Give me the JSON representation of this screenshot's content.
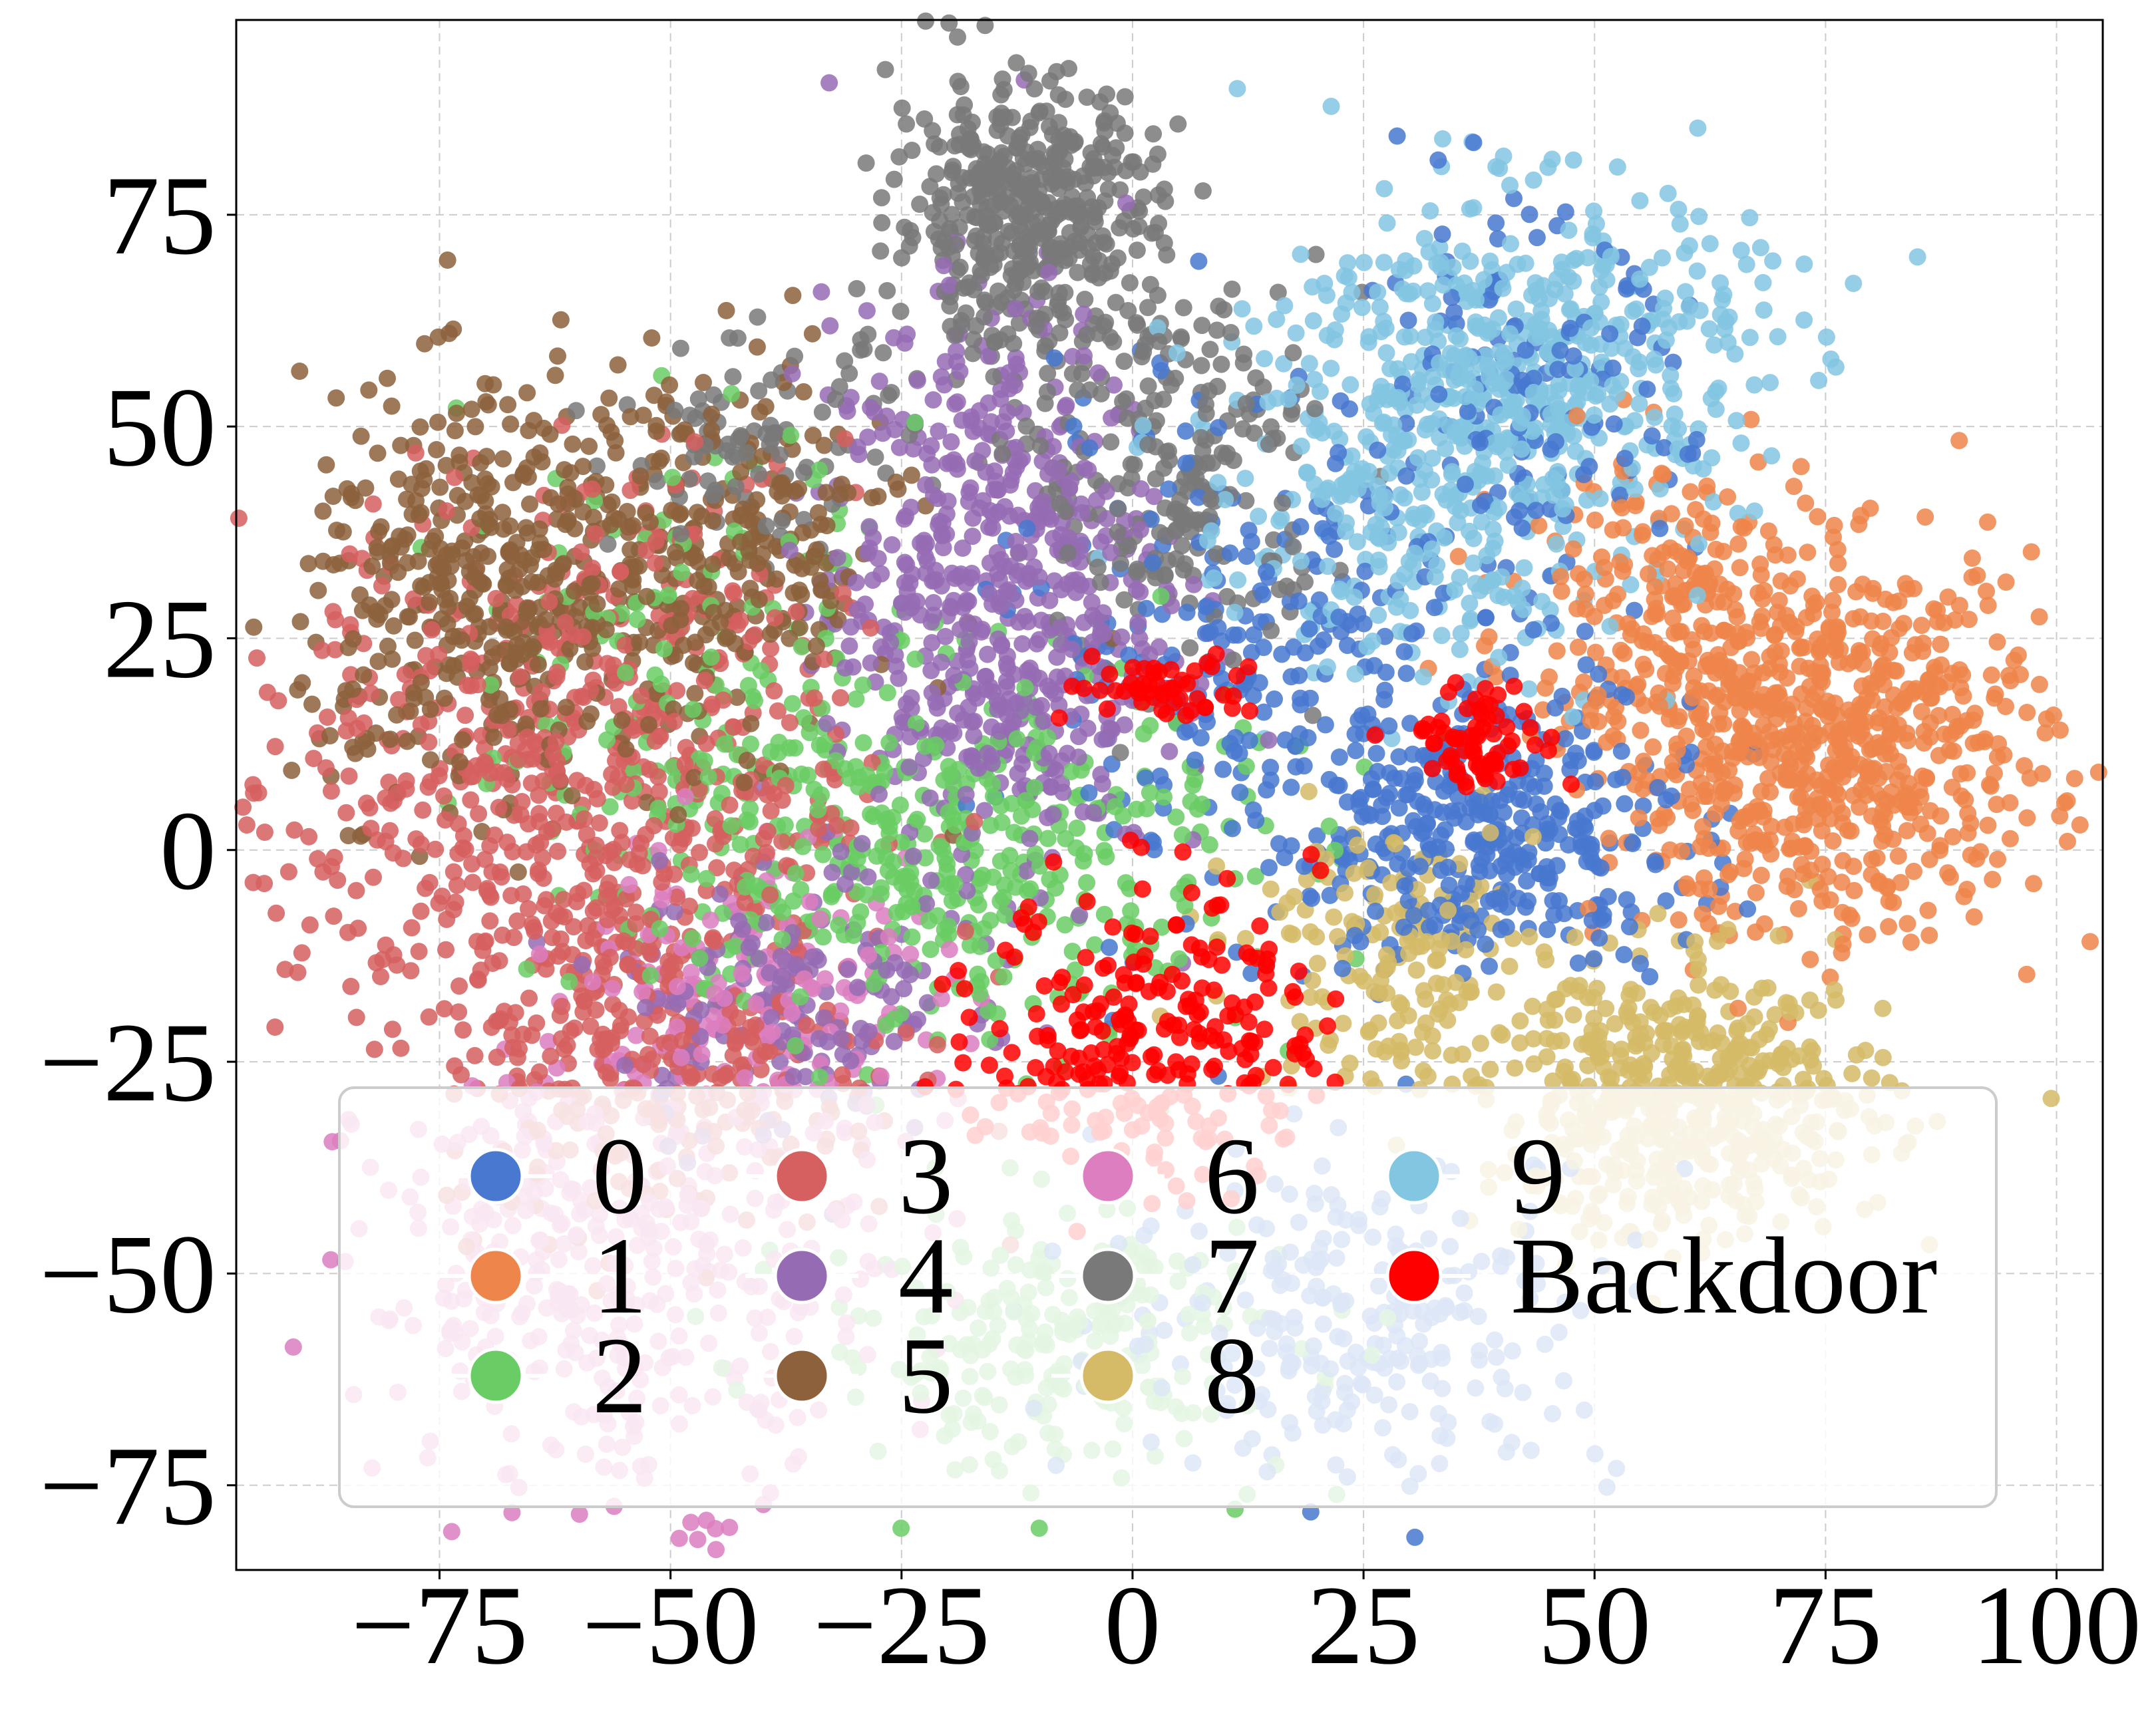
{
  "chart_data": {
    "type": "scatter",
    "title": "",
    "xlabel": "",
    "ylabel": "",
    "xlim": [
      -97,
      105
    ],
    "ylim": [
      -85,
      98
    ],
    "xticks": [
      "−75",
      "−50",
      "−25",
      "0",
      "25",
      "50",
      "75",
      "100"
    ],
    "yticks": [
      "−75",
      "−50",
      "−25",
      "0",
      "25",
      "50",
      "75"
    ],
    "grid": true,
    "legend_position": "lower center",
    "legend_columns": 4,
    "series": [
      {
        "name": "0",
        "color": "#4878d0",
        "clusters": [
          {
            "cx": 38,
            "cy": 2,
            "sx": 11,
            "sy": 8,
            "n": 380
          },
          {
            "cx": 12,
            "cy": 25,
            "sx": 12,
            "sy": 15,
            "n": 230
          },
          {
            "cx": 42,
            "cy": 50,
            "sx": 9,
            "sy": 12,
            "n": 150
          },
          {
            "cx": 25,
            "cy": -55,
            "sx": 14,
            "sy": 10,
            "n": 260
          }
        ]
      },
      {
        "name": "1",
        "color": "#ee854a",
        "clusters": [
          {
            "cx": 75,
            "cy": 12,
            "sx": 12,
            "sy": 11,
            "n": 720
          },
          {
            "cx": 57,
            "cy": 30,
            "sx": 8,
            "sy": 9,
            "n": 170
          }
        ]
      },
      {
        "name": "2",
        "color": "#6acc64",
        "clusters": [
          {
            "cx": -22,
            "cy": 0,
            "sx": 17,
            "sy": 11,
            "n": 440
          },
          {
            "cx": -8,
            "cy": -58,
            "sx": 13,
            "sy": 8,
            "n": 240
          },
          {
            "cx": -48,
            "cy": 20,
            "sx": 12,
            "sy": 14,
            "n": 130
          }
        ]
      },
      {
        "name": "3",
        "color": "#d65f5f",
        "clusters": [
          {
            "cx": -60,
            "cy": 8,
            "sx": 15,
            "sy": 17,
            "n": 700
          },
          {
            "cx": -50,
            "cy": -25,
            "sx": 13,
            "sy": 10,
            "n": 260
          }
        ]
      },
      {
        "name": "4",
        "color": "#956cb4",
        "clusters": [
          {
            "cx": -15,
            "cy": 30,
            "sx": 9,
            "sy": 17,
            "n": 620
          },
          {
            "cx": -38,
            "cy": -18,
            "sx": 9,
            "sy": 8,
            "n": 150
          }
        ]
      },
      {
        "name": "5",
        "color": "#8c613c",
        "clusters": [
          {
            "cx": -70,
            "cy": 30,
            "sx": 10,
            "sy": 12,
            "n": 420
          },
          {
            "cx": -45,
            "cy": 35,
            "sx": 10,
            "sy": 11,
            "n": 280
          }
        ]
      },
      {
        "name": "6",
        "color": "#dc7ec0",
        "clusters": [
          {
            "cx": -55,
            "cy": -50,
            "sx": 14,
            "sy": 13,
            "n": 400
          },
          {
            "cx": -40,
            "cy": -15,
            "sx": 10,
            "sy": 9,
            "n": 150
          }
        ]
      },
      {
        "name": "7",
        "color": "#797979",
        "clusters": [
          {
            "cx": -12,
            "cy": 75,
            "sx": 7,
            "sy": 8,
            "n": 460
          },
          {
            "cx": 5,
            "cy": 45,
            "sx": 8,
            "sy": 12,
            "n": 240
          },
          {
            "cx": -40,
            "cy": 48,
            "sx": 8,
            "sy": 6,
            "n": 90
          }
        ]
      },
      {
        "name": "8",
        "color": "#d5bb67",
        "clusters": [
          {
            "cx": 60,
            "cy": -30,
            "sx": 11,
            "sy": 8,
            "n": 520
          },
          {
            "cx": 28,
            "cy": -12,
            "sx": 8,
            "sy": 8,
            "n": 160
          }
        ]
      },
      {
        "name": "9",
        "color": "#82c6e2",
        "clusters": [
          {
            "cx": 42,
            "cy": 58,
            "sx": 13,
            "sy": 10,
            "n": 500
          },
          {
            "cx": 30,
            "cy": 38,
            "sx": 12,
            "sy": 9,
            "n": 240
          }
        ]
      },
      {
        "name": "Backdoor",
        "color": "#ff0000",
        "clusters": [
          {
            "cx": 2,
            "cy": -22,
            "sx": 9,
            "sy": 9,
            "n": 260
          },
          {
            "cx": 38,
            "cy": 13,
            "sx": 4,
            "sy": 3,
            "n": 70
          },
          {
            "cx": 3,
            "cy": 19,
            "sx": 5,
            "sy": 2,
            "n": 50
          }
        ]
      }
    ]
  }
}
